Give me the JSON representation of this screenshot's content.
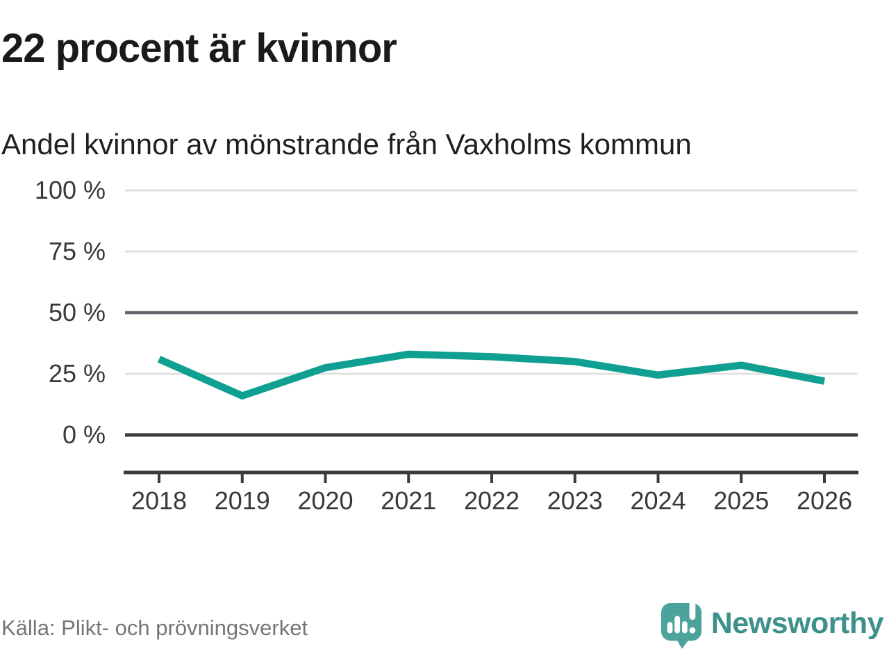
{
  "header": {
    "title": "22 procent är kvinnor",
    "subtitle": "Andel kvinnor av mönstrande från Vaxholms kommun"
  },
  "footer": {
    "source": "Källa: Plikt- och prövningsverket",
    "brand": "Newsworthy"
  },
  "icons": {
    "logo": "newsworthy-speech-bubble-bar-chart-icon"
  },
  "colors": {
    "line": "#10a091",
    "grid_light": "#e1e1e1",
    "grid_mid": "#63636b",
    "axis": "#3a3a3a",
    "text_dark": "#1a1a1a",
    "text_axis": "#39393b",
    "text_gray": "#757577",
    "logo_teal": "#4ba39b",
    "wordmark_teal": "#3e918b"
  },
  "chart_data": {
    "type": "line",
    "title": "22 procent är kvinnor",
    "subtitle": "Andel kvinnor av mönstrande från Vaxholms kommun",
    "categories": [
      "2018",
      "2019",
      "2020",
      "2021",
      "2022",
      "2023",
      "2024",
      "2025",
      "2026"
    ],
    "series": [
      {
        "name": "Andel kvinnor av mönstrande",
        "values": [
          31,
          16,
          27.5,
          33,
          32,
          30,
          24.5,
          28.5,
          22
        ]
      }
    ],
    "unit": "%",
    "ylim": [
      0,
      100
    ],
    "yticks": [
      0,
      25,
      50,
      75,
      100
    ],
    "ytick_labels": [
      "0 %",
      "25 %",
      "50 %",
      "75 %",
      "100 %"
    ],
    "xlabel": "",
    "ylabel": "",
    "grid": "horizontal-only",
    "emphasized_gridline": 50,
    "baseline_gridline": 0,
    "legend": "none",
    "line_color": "#10a091"
  }
}
